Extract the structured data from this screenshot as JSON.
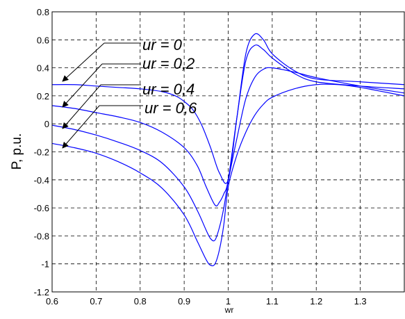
{
  "chart_data": {
    "type": "line",
    "title": "",
    "xlabel": "wr",
    "ylabel": "P, p.u.",
    "xlim": [
      0.6,
      1.4
    ],
    "ylim": [
      -1.2,
      0.8
    ],
    "x_ticks": [
      "0.6",
      "0.7",
      "0.8",
      "0.9",
      "1",
      "1.1",
      "1.2",
      "1.3"
    ],
    "y_ticks": [
      "0.8",
      "0.6",
      "0.4",
      "0.2",
      "0",
      "-0.2",
      "-0.4",
      "-0.6",
      "-0.8",
      "-1",
      "-1.2"
    ],
    "grid": true,
    "line_color": "#0000ff",
    "series": [
      {
        "name": "ur = 0",
        "x": [
          0.6,
          0.65,
          0.7,
          0.75,
          0.8,
          0.85,
          0.88,
          0.9,
          0.92,
          0.94,
          0.96,
          0.98,
          1.0,
          1.02,
          1.04,
          1.06,
          1.08,
          1.1,
          1.15,
          1.2,
          1.3,
          1.4
        ],
        "y": [
          0.28,
          0.28,
          0.27,
          0.26,
          0.25,
          0.23,
          0.2,
          0.16,
          0.1,
          -0.01,
          -0.17,
          -0.35,
          -0.4,
          0.05,
          0.5,
          0.64,
          0.6,
          0.5,
          0.38,
          0.32,
          0.3,
          0.28
        ]
      },
      {
        "name": "ur = 0,2",
        "x": [
          0.6,
          0.65,
          0.7,
          0.75,
          0.8,
          0.85,
          0.9,
          0.93,
          0.95,
          0.97,
          0.98,
          0.99,
          1.0,
          1.02,
          1.04,
          1.06,
          1.08,
          1.1,
          1.15,
          1.2,
          1.3,
          1.4
        ],
        "y": [
          0.13,
          0.11,
          0.08,
          0.05,
          0.01,
          -0.06,
          -0.17,
          -0.3,
          -0.45,
          -0.58,
          -0.56,
          -0.5,
          -0.4,
          0.05,
          0.45,
          0.56,
          0.53,
          0.47,
          0.36,
          0.3,
          0.27,
          0.25
        ]
      },
      {
        "name": "ur = 0,4",
        "x": [
          0.6,
          0.65,
          0.7,
          0.75,
          0.8,
          0.85,
          0.9,
          0.93,
          0.95,
          0.96,
          0.97,
          0.98,
          0.99,
          1.0,
          1.02,
          1.04,
          1.06,
          1.08,
          1.1,
          1.15,
          1.2,
          1.3,
          1.4
        ],
        "y": [
          -0.01,
          -0.04,
          -0.08,
          -0.13,
          -0.19,
          -0.28,
          -0.45,
          -0.62,
          -0.76,
          -0.82,
          -0.83,
          -0.74,
          -0.6,
          -0.41,
          -0.1,
          0.18,
          0.33,
          0.39,
          0.4,
          0.37,
          0.33,
          0.27,
          0.22
        ]
      },
      {
        "name": "ur = 0,6",
        "x": [
          0.6,
          0.65,
          0.7,
          0.75,
          0.8,
          0.85,
          0.9,
          0.93,
          0.95,
          0.96,
          0.97,
          0.98,
          0.99,
          1.0,
          1.02,
          1.04,
          1.06,
          1.08,
          1.1,
          1.15,
          1.2,
          1.25,
          1.3,
          1.4
        ],
        "y": [
          -0.14,
          -0.17,
          -0.21,
          -0.27,
          -0.35,
          -0.46,
          -0.65,
          -0.84,
          -0.97,
          -1.01,
          -1.0,
          -0.9,
          -0.72,
          -0.45,
          -0.22,
          -0.06,
          0.06,
          0.14,
          0.19,
          0.25,
          0.28,
          0.28,
          0.26,
          0.2
        ]
      }
    ],
    "annotations": [
      {
        "label": "ur = 0",
        "series_index": 0,
        "x": 0.6,
        "y": 0.28
      },
      {
        "label": "ur = 0,2",
        "series_index": 1,
        "x": 0.6,
        "y": 0.13
      },
      {
        "label": "ur = 0,4",
        "series_index": 2,
        "x": 0.6,
        "y": -0.01
      },
      {
        "label": "ur = 0,6",
        "series_index": 3,
        "x": 0.6,
        "y": -0.14
      }
    ]
  }
}
